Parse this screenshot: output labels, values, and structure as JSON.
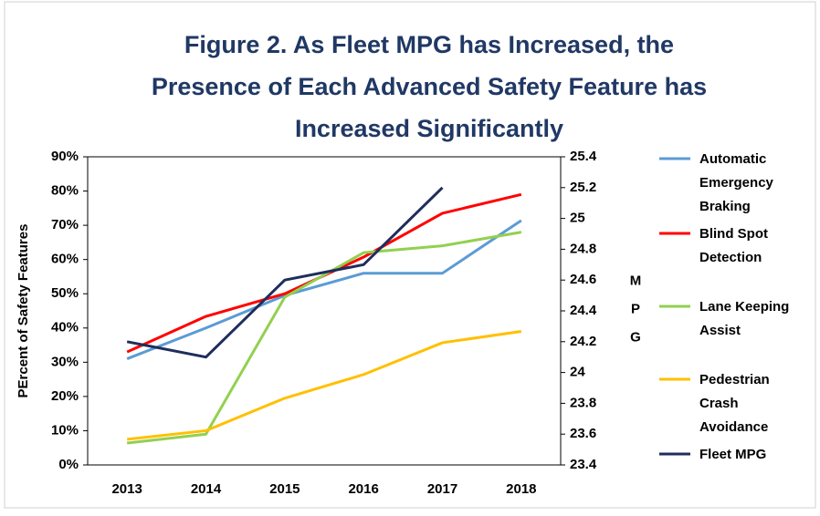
{
  "chart_data": {
    "type": "line",
    "title": [
      "Figure 2. As Fleet MPG has Increased, the",
      "Presence of Each Advanced Safety Feature has",
      "Increased Significantly"
    ],
    "y_label": "PErcent of Safety Features",
    "y2_label": "MPG",
    "categories": [
      "2013",
      "2014",
      "2015",
      "2016",
      "2017",
      "2018"
    ],
    "ylim": [
      0,
      90
    ],
    "yticks": [
      {
        "value": 0,
        "label": "0%"
      },
      {
        "value": 10,
        "label": "10%"
      },
      {
        "value": 20,
        "label": "20%"
      },
      {
        "value": 30,
        "label": "30%"
      },
      {
        "value": 40,
        "label": "40%"
      },
      {
        "value": 50,
        "label": "50%"
      },
      {
        "value": 60,
        "label": "60%"
      },
      {
        "value": 70,
        "label": "70%"
      },
      {
        "value": 80,
        "label": "80%"
      },
      {
        "value": 90,
        "label": "90%"
      }
    ],
    "y2lim": [
      23.4,
      25.4
    ],
    "y2ticks": [
      23.4,
      23.6,
      23.8,
      24,
      24.2,
      24.4,
      24.6,
      24.8,
      25,
      25.2,
      25.4
    ],
    "legend": "right",
    "series": [
      {
        "name": "Automatic Emergency Braking",
        "color": "#5b9bd5",
        "values": [
          31,
          40,
          49.5,
          56,
          56,
          71.4
        ]
      },
      {
        "name": "Blind Spot Detection",
        "color": "#ff0000",
        "values": [
          33,
          43.4,
          50,
          60.7,
          73.5,
          79
        ]
      },
      {
        "name": "Lane Keeping Assist",
        "color": "#92d050",
        "values": [
          6.4,
          9,
          49,
          62,
          64,
          68
        ]
      },
      {
        "name": "Pedestrian Crash Avoidance",
        "color": "#ffc000",
        "values": [
          7.5,
          10,
          19.5,
          26.4,
          35.7,
          39
        ]
      },
      {
        "name": "Fleet MPG",
        "color": "#1f2d5c",
        "axis": "y2",
        "values": [
          24.2,
          24.1,
          24.6,
          24.7,
          25.2,
          null
        ]
      }
    ]
  }
}
